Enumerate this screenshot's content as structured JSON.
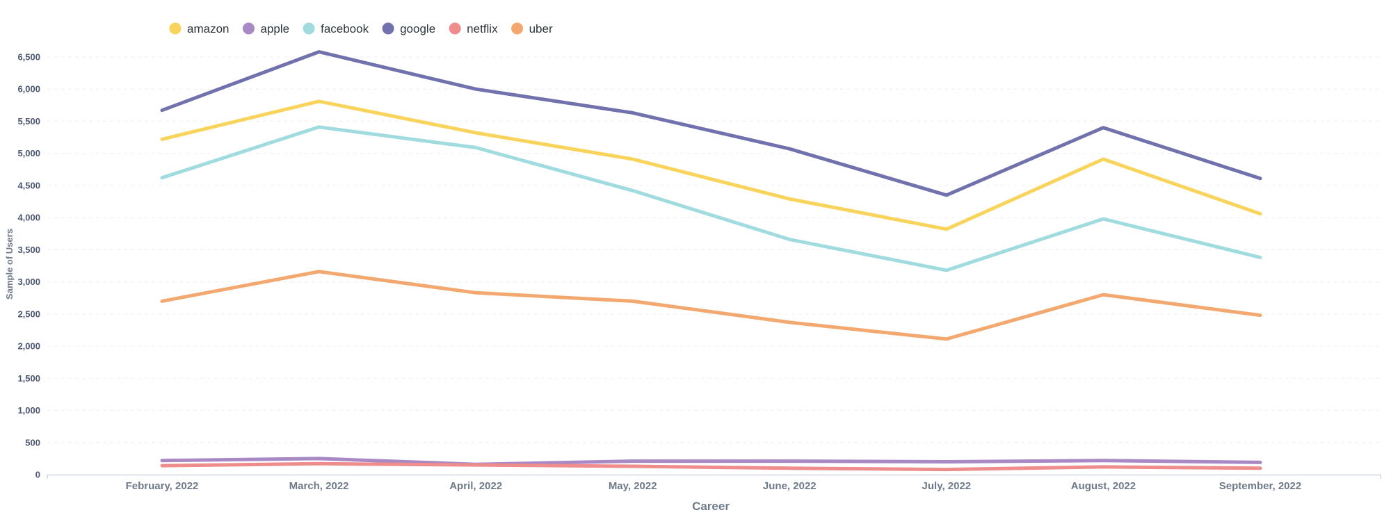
{
  "chart_data": {
    "type": "line",
    "xlabel": "Career",
    "ylabel": "Sample of Users",
    "ylim": [
      0,
      6500
    ],
    "yticks": [
      0,
      500,
      1000,
      1500,
      2000,
      2500,
      3000,
      3500,
      4000,
      4500,
      5000,
      5500,
      6000,
      6500
    ],
    "ytick_labels": [
      "0",
      "500",
      "1,000",
      "1,500",
      "2,000",
      "2,500",
      "3,000",
      "3,500",
      "4,000",
      "4,500",
      "5,000",
      "5,500",
      "6,000",
      "6,500"
    ],
    "grid": true,
    "legend_position": "top-left",
    "categories": [
      "February, 2022",
      "March, 2022",
      "April, 2022",
      "May, 2022",
      "June, 2022",
      "July, 2022",
      "August, 2022",
      "September, 2022"
    ],
    "series": [
      {
        "name": "amazon",
        "color": "#f9d45c",
        "values": [
          5220,
          5810,
          5320,
          4910,
          4290,
          3820,
          4910,
          4060
        ]
      },
      {
        "name": "apple",
        "color": "#a989c5",
        "values": [
          220,
          250,
          160,
          210,
          210,
          200,
          220,
          190
        ]
      },
      {
        "name": "facebook",
        "color": "#a0dcdf",
        "values": [
          4620,
          5410,
          5090,
          4420,
          3660,
          3180,
          3980,
          3380
        ]
      },
      {
        "name": "google",
        "color": "#7172ad",
        "values": [
          5670,
          6580,
          6000,
          5630,
          5070,
          4350,
          5400,
          4610
        ]
      },
      {
        "name": "netflix",
        "color": "#ef8c8c",
        "values": [
          140,
          170,
          150,
          130,
          100,
          80,
          120,
          100
        ]
      },
      {
        "name": "uber",
        "color": "#f2a86f",
        "values": [
          2700,
          3160,
          2830,
          2700,
          2370,
          2110,
          2800,
          2480
        ]
      }
    ]
  }
}
